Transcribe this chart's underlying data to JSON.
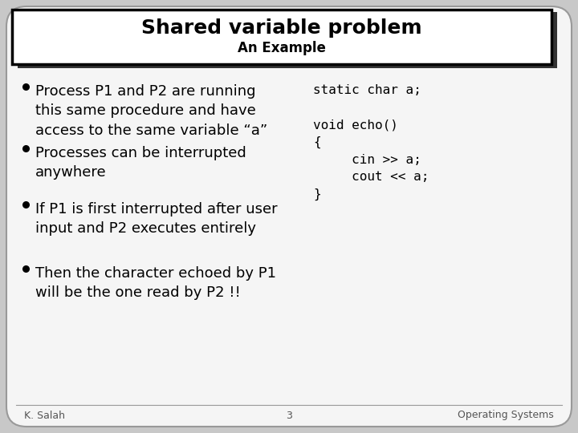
{
  "title": "Shared variable problem",
  "subtitle": "An Example",
  "outer_bg": "#c8c8c8",
  "slide_bg": "#f5f5f5",
  "title_box_bg": "#ffffff",
  "title_box_border": "#000000",
  "shadow_color": "#333333",
  "title_fontsize": 18,
  "subtitle_fontsize": 12,
  "bullet_fontsize": 13,
  "code_fontsize": 11.5,
  "footer_fontsize": 9,
  "bullets": [
    "Process P1 and P2 are running\nthis same procedure and have\naccess to the same variable “a”",
    "Processes can be interrupted\nanywhere",
    "If P1 is first interrupted after user\ninput and P2 executes entirely",
    "Then the character echoed by P1\nwill be the one read by P2 !!"
  ],
  "code_text": "static char a;\n\nvoid echo()\n{\n     cin >> a;\n     cout << a;\n}",
  "footer_left": "K. Salah",
  "footer_center": "3",
  "footer_right": "Operating Systems"
}
